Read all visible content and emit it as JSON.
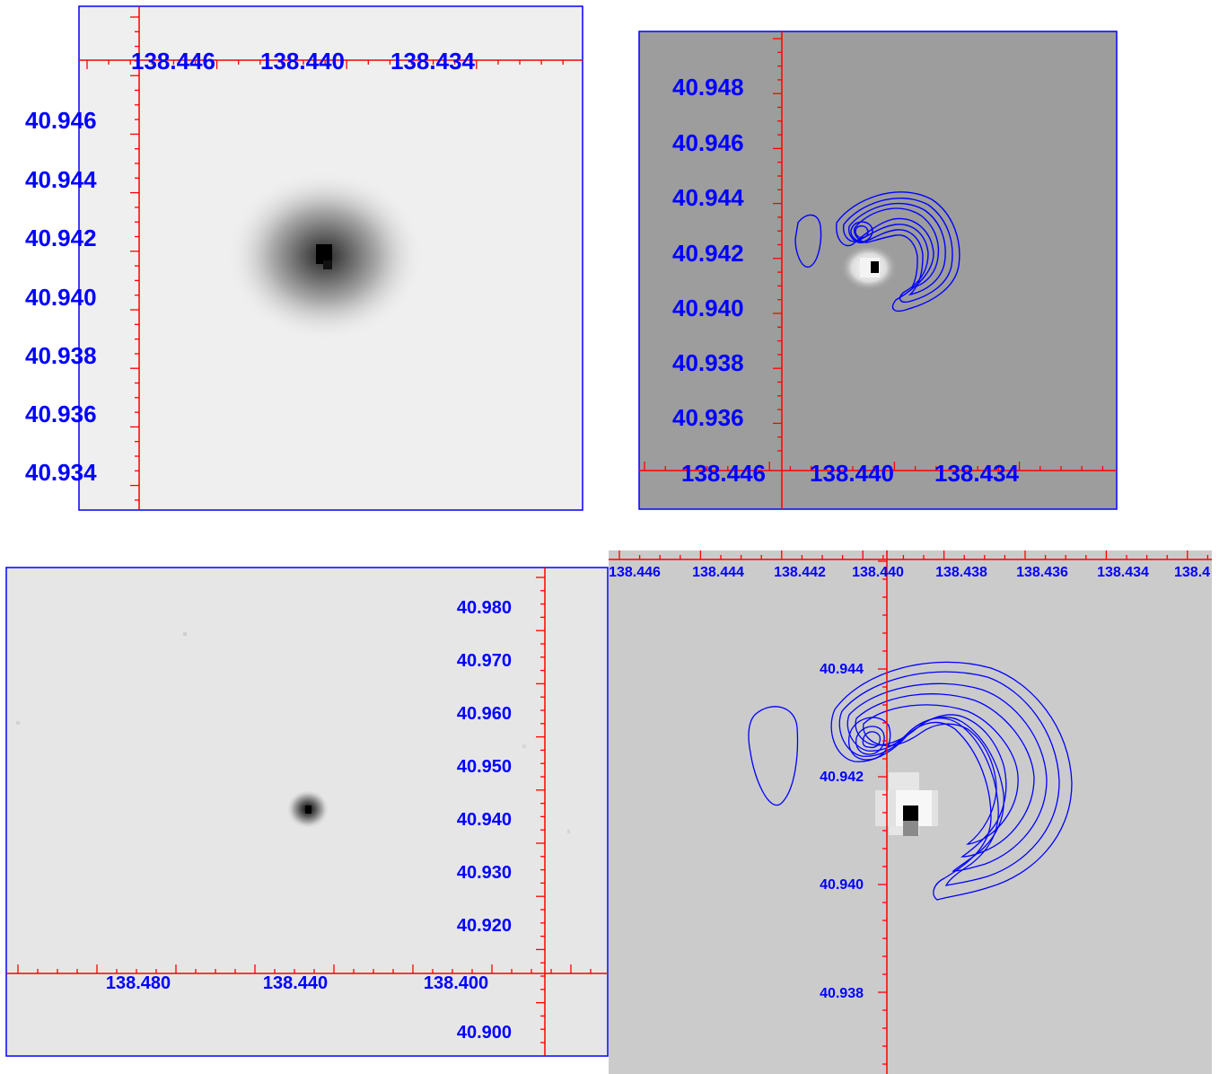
{
  "colors": {
    "axis_line": "#ff0000",
    "label_text": "#0000ff",
    "panel_border": "#0000ff",
    "contour": "#0000ff"
  },
  "panels": [
    {
      "id": "top-left",
      "ra_labels": [
        "138.446",
        "138.440",
        "138.434"
      ],
      "dec_labels": [
        "40.946",
        "40.944",
        "40.942",
        "40.940",
        "40.938",
        "40.936",
        "40.934"
      ]
    },
    {
      "id": "top-right",
      "ra_labels": [
        "138.446",
        "138.440",
        "138.434"
      ],
      "dec_labels": [
        "40.948",
        "40.946",
        "40.944",
        "40.942",
        "40.940",
        "40.938",
        "40.936"
      ]
    },
    {
      "id": "bottom-left",
      "ra_labels": [
        "138.480",
        "138.440",
        "138.400"
      ],
      "dec_labels": [
        "40.980",
        "40.970",
        "40.960",
        "40.950",
        "40.940",
        "40.930",
        "40.920",
        "40.900"
      ]
    },
    {
      "id": "bottom-right",
      "ra_labels": [
        "138.446",
        "138.444",
        "138.442",
        "138.440",
        "138.438",
        "138.436",
        "138.434",
        "138.4"
      ],
      "dec_labels": [
        "40.944",
        "40.942",
        "40.940",
        "40.938"
      ]
    }
  ]
}
